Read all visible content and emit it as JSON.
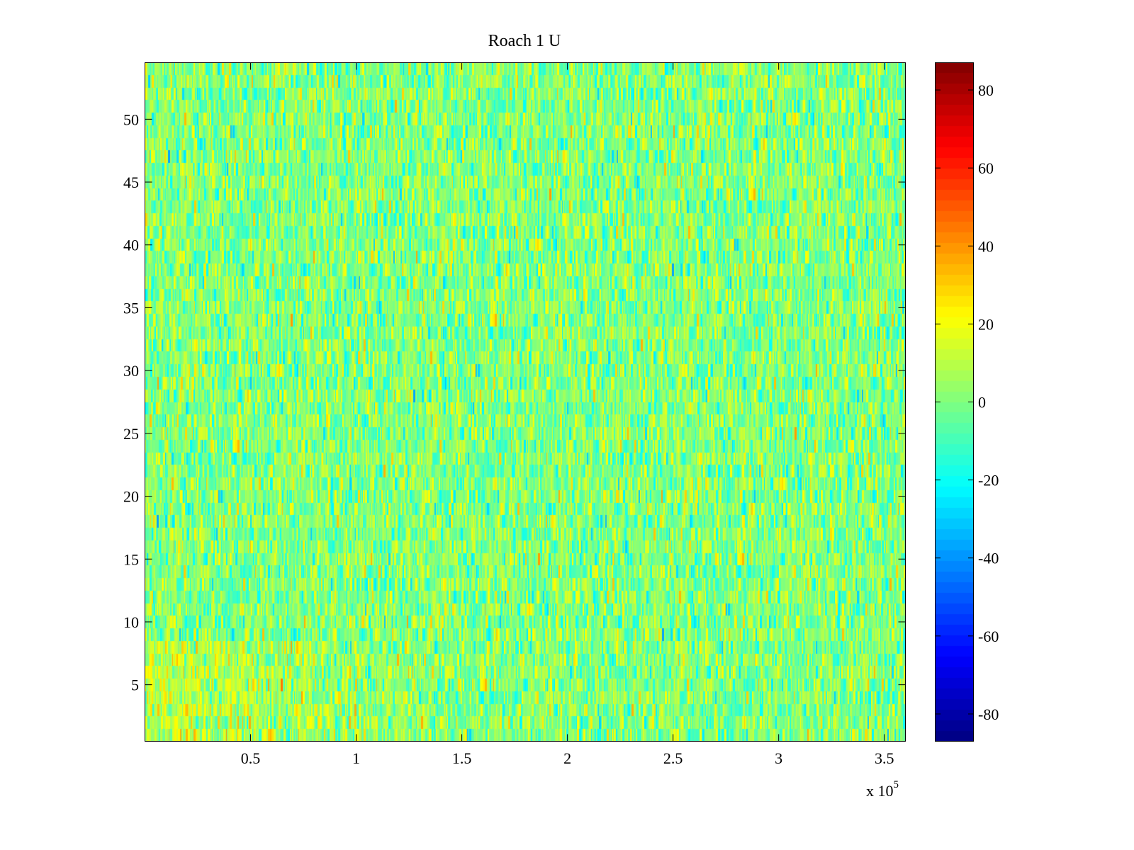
{
  "chart_data": {
    "type": "heatmap",
    "title": "Roach 1 U",
    "xlabel": "",
    "ylabel": "",
    "x_exponent_label": "x 10",
    "x_exponent_power": "5",
    "xlim": [
      0,
      3.6
    ],
    "ylim": [
      0.5,
      54.5
    ],
    "rows": 54,
    "x_ticks": [
      0.5,
      1,
      1.5,
      2,
      2.5,
      3,
      3.5
    ],
    "x_tick_labels": [
      "0.5",
      "1",
      "1.5",
      "2",
      "2.5",
      "3",
      "3.5"
    ],
    "y_ticks": [
      5,
      10,
      15,
      20,
      25,
      30,
      35,
      40,
      45,
      50
    ],
    "y_tick_labels": [
      "5",
      "10",
      "15",
      "20",
      "25",
      "30",
      "35",
      "40",
      "45",
      "50"
    ],
    "colormap": "jet",
    "clim": [
      -87,
      87
    ],
    "colorbar_ticks": [
      80,
      60,
      40,
      20,
      0,
      -20,
      -40,
      -60,
      -80
    ],
    "colorbar_tick_labels": [
      "80",
      "60",
      "40",
      "20",
      "0",
      "-20",
      "-40",
      "-60",
      "-80"
    ],
    "value_distribution": {
      "mean": 0,
      "std": 12,
      "note_rows_1_to_8_left_half_mean": 10
    },
    "grid": false
  }
}
